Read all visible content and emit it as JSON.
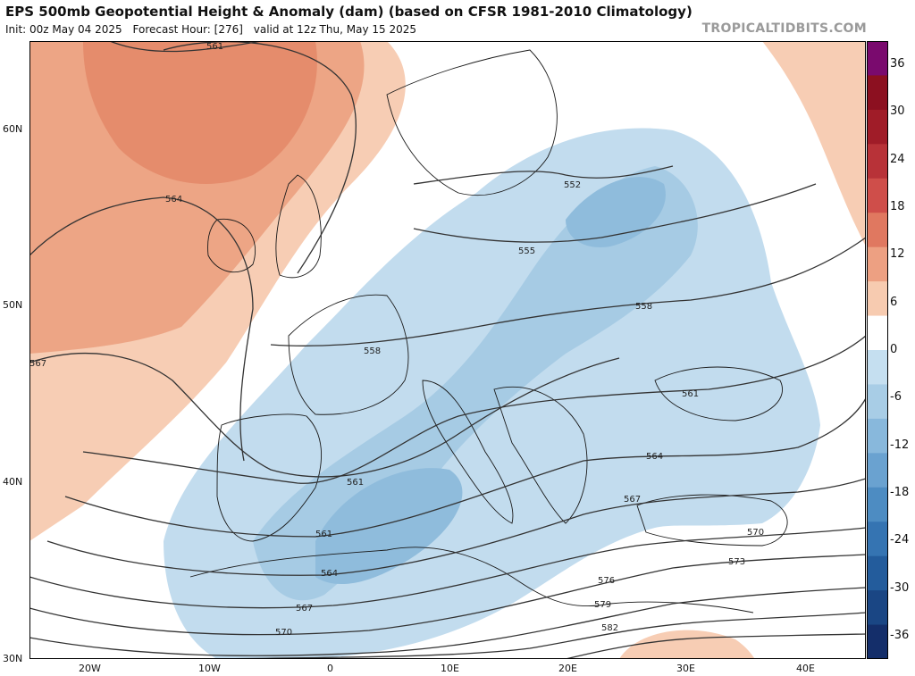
{
  "header": {
    "title": "EPS 500mb Geopotential Height & Anomaly (dam) (based on CFSR 1981-2010 Climatology)",
    "init": "Init: 00z May 04 2025",
    "forecast_hour": "Forecast Hour: [276]",
    "valid": "valid at 12z Thu, May 15 2025",
    "credit": "TROPICALTIDBITS.COM"
  },
  "axes": {
    "lat_labels": [
      "60N",
      "50N",
      "40N",
      "30N"
    ],
    "lon_labels": [
      "20W",
      "10W",
      "0",
      "10E",
      "20E",
      "30E",
      "40E"
    ]
  },
  "contour_labels": [
    "561",
    "564",
    "567",
    "552",
    "555",
    "558",
    "558",
    "561",
    "561",
    "564",
    "567",
    "570",
    "573",
    "576",
    "579",
    "582",
    "561",
    "564",
    "567",
    "570",
    "573"
  ],
  "colorbar": {
    "labels": [
      "36",
      "30",
      "24",
      "18",
      "12",
      "6",
      "0",
      "-6",
      "-12",
      "-18",
      "-24",
      "-30",
      "-36"
    ],
    "colors": [
      "#7a0a6e",
      "#8c1020",
      "#a01c28",
      "#b83238",
      "#cf4e4a",
      "#e07860",
      "#eda082",
      "#f7cbb0",
      "#ffffff",
      "#c5dff0",
      "#a8cde6",
      "#88b8dc",
      "#6aa2d0",
      "#4d8cc2",
      "#3574b2",
      "#235c9c",
      "#1a4684",
      "#142e6a"
    ]
  }
}
